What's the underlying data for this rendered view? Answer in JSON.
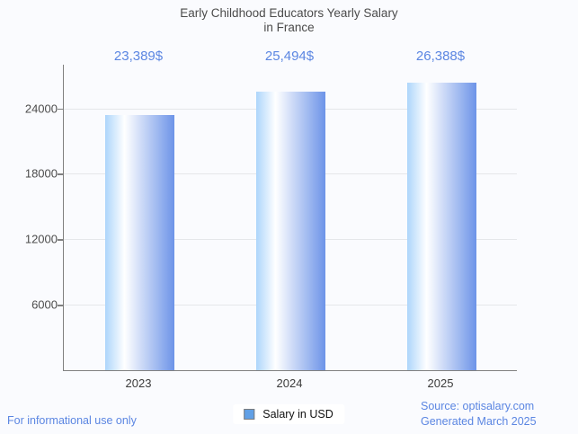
{
  "title": {
    "line1": "Early Childhood Educators Yearly Salary",
    "line2": "in France"
  },
  "legend": {
    "label": "Salary in USD",
    "swatch_color": "#61a0e6"
  },
  "footer": {
    "left": "For informational use only",
    "source": "Source: optisalary.com",
    "generated": "Generated March 2025"
  },
  "colors": {
    "background": "#fafbfe",
    "value_label_blue": "#5b86e2",
    "footer_blue": "#5b86e2",
    "title_gray": "#4b4b4b",
    "axis_gray": "#808080",
    "gridline_gray": "#e5e7ea",
    "bar_gradient_left": "#add5fb",
    "bar_gradient_mid": "#ffffff",
    "bar_gradient_right": "#6d94e8"
  },
  "chart_data": {
    "type": "bar",
    "title": "Early Childhood Educators Yearly Salary in France",
    "categories": [
      "2023",
      "2024",
      "2025"
    ],
    "values": [
      23389,
      25494,
      26388
    ],
    "value_labels": [
      "23,389$",
      "25,494$",
      "26,388$"
    ],
    "series": [
      {
        "name": "Salary in USD",
        "values": [
          23389,
          25494,
          26388
        ]
      }
    ],
    "xlabel": "",
    "ylabel": "",
    "ylim": [
      0,
      28000
    ],
    "yticks": [
      6000,
      12000,
      18000,
      24000
    ],
    "grid": true,
    "legend_position": "bottom"
  }
}
